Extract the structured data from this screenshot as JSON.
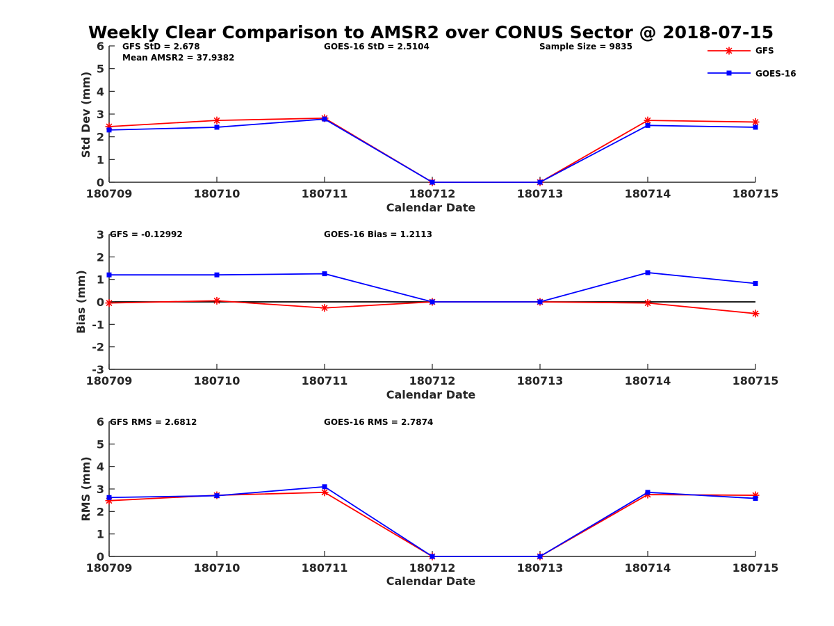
{
  "figure": {
    "title": "Weekly Clear Comparison to AMSR2 over CONUS Sector @ 2018-07-15"
  },
  "legend": {
    "placement": "top-right",
    "entries": [
      {
        "label": "GFS",
        "color": "#ff0000",
        "marker": "asterisk"
      },
      {
        "label": "GOES-16",
        "color": "#0000ff",
        "marker": "square"
      }
    ]
  },
  "chart_data": [
    {
      "type": "line",
      "xlabel": "Calendar Date",
      "ylabel": "Std Dev (mm)",
      "ylim": [
        0,
        6
      ],
      "yticks": [
        "0",
        "1",
        "2",
        "3",
        "4",
        "5",
        "6"
      ],
      "categories": [
        "180709",
        "180710",
        "180711",
        "180712",
        "180713",
        "180714",
        "180715"
      ],
      "series": [
        {
          "name": "GFS",
          "color": "#ff0000",
          "values": [
            2.45,
            2.72,
            2.82,
            0,
            0,
            2.72,
            2.65
          ]
        },
        {
          "name": "GOES-16",
          "color": "#0000ff",
          "values": [
            2.3,
            2.42,
            2.78,
            0,
            0,
            2.5,
            2.42
          ]
        }
      ],
      "annotations": [
        "GFS StD = 2.678",
        "Mean AMSR2 = 37.9382",
        "GOES-16 StD = 2.5104",
        "Sample Size = 9835"
      ]
    },
    {
      "type": "line",
      "xlabel": "Calendar Date",
      "ylabel": "Bias (mm)",
      "ylim": [
        -3,
        3
      ],
      "yticks": [
        "-3",
        "-2",
        "-1",
        "0",
        "1",
        "2",
        "3"
      ],
      "zero_line": true,
      "categories": [
        "180709",
        "180710",
        "180711",
        "180712",
        "180713",
        "180714",
        "180715"
      ],
      "series": [
        {
          "name": "GFS",
          "color": "#ff0000",
          "values": [
            -0.05,
            0.05,
            -0.27,
            0,
            0,
            -0.05,
            -0.52
          ]
        },
        {
          "name": "GOES-16",
          "color": "#0000ff",
          "values": [
            1.2,
            1.2,
            1.25,
            0,
            0,
            1.3,
            0.82
          ]
        }
      ],
      "annotations": [
        "GFS = -0.12992",
        "GOES-16 Bias  = 1.2113"
      ]
    },
    {
      "type": "line",
      "xlabel": "Calendar Date",
      "ylabel": "RMS (mm)",
      "ylim": [
        0,
        6
      ],
      "yticks": [
        "0",
        "1",
        "2",
        "3",
        "4",
        "5",
        "6"
      ],
      "categories": [
        "180709",
        "180710",
        "180711",
        "180712",
        "180713",
        "180714",
        "180715"
      ],
      "series": [
        {
          "name": "GFS",
          "color": "#ff0000",
          "values": [
            2.48,
            2.72,
            2.85,
            0,
            0,
            2.75,
            2.72
          ]
        },
        {
          "name": "GOES-16",
          "color": "#0000ff",
          "values": [
            2.62,
            2.7,
            3.1,
            0,
            0,
            2.85,
            2.58
          ]
        }
      ],
      "annotations": [
        "GFS RMS = 2.6812",
        "GOES-16 RMS = 2.7874"
      ]
    }
  ]
}
